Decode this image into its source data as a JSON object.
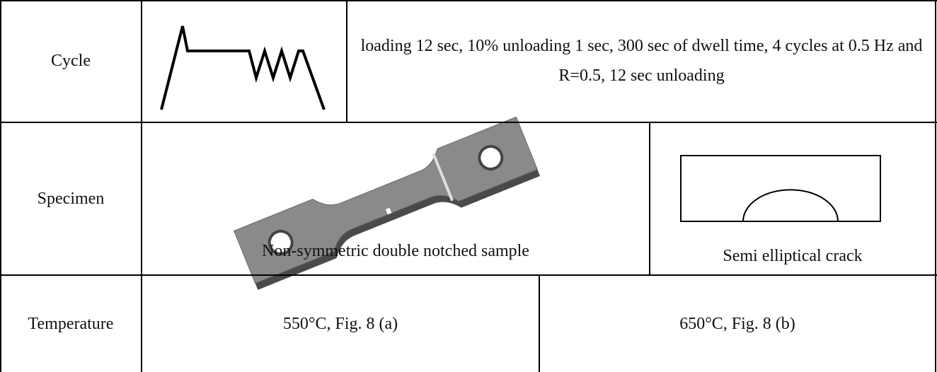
{
  "table": {
    "rows": [
      [
        "Cycle",
        "loading 12 sec, 10% unloading 1 sec, 300 sec of dwell time, 4 cycles at 0.5 Hz and R=0.5, 12 sec unloading"
      ],
      [
        "Specimen",
        "Non-symmetric double notched sample",
        "Semi elliptical crack"
      ],
      [
        "Temperature",
        "550°C, Fig. 8 (a)",
        "650°C, Fig. 8 (b)"
      ]
    ]
  }
}
